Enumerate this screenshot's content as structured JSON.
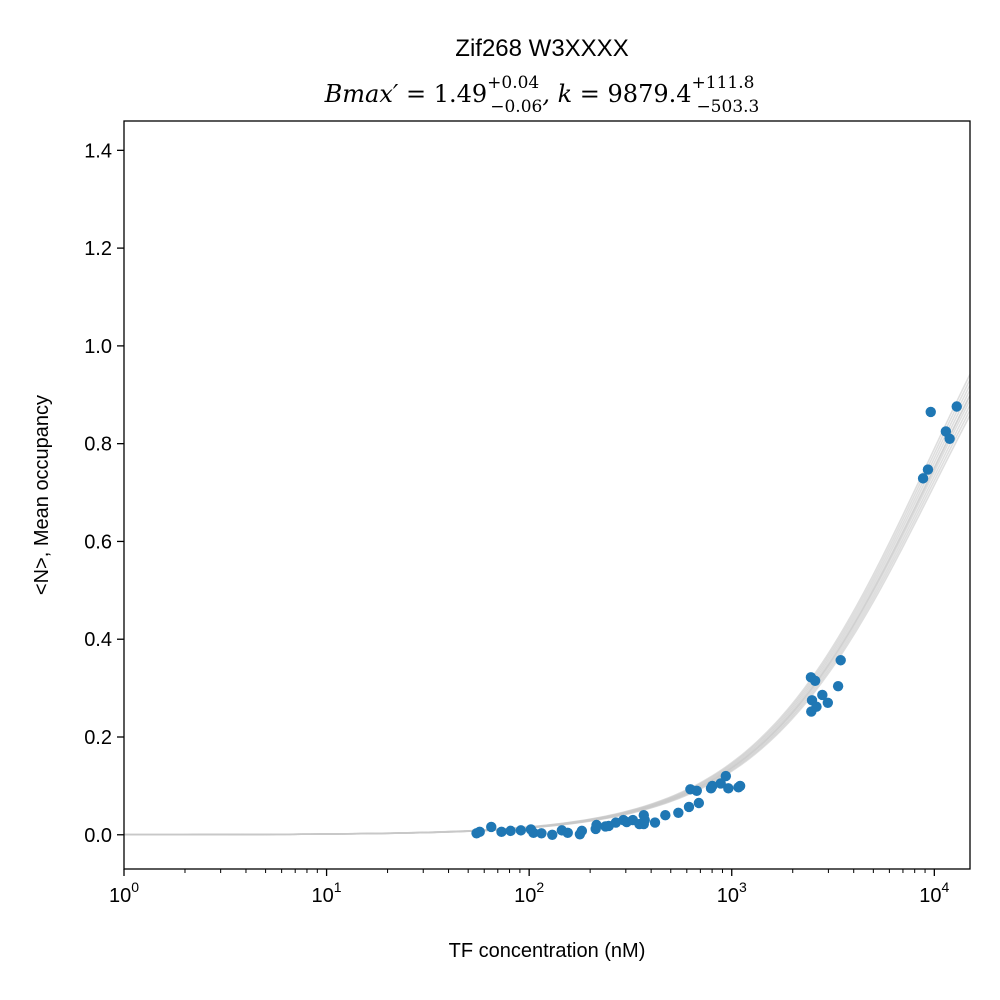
{
  "chart_data": {
    "type": "scatter",
    "title": "Zif268 W3XXXX",
    "subtitle": {
      "bmax_symbol": "Bmax′ = ",
      "bmax_value": "1.49",
      "bmax_plus": "+0.04",
      "bmax_minus": "−0.06",
      "k_symbol": ", k = ",
      "k_value": "9879.4",
      "k_plus": "+111.8",
      "k_minus": "−503.3"
    },
    "xlabel": "TF concentration (nM)",
    "ylabel": "<N>, Mean occupancy",
    "xscale": "log",
    "xlim": [
      1,
      15000
    ],
    "ylim": [
      -0.07,
      1.46
    ],
    "yticks": [
      0.0,
      0.2,
      0.4,
      0.6,
      0.8,
      1.0,
      1.2,
      1.4
    ],
    "ytick_labels": [
      "0.0",
      "0.2",
      "0.4",
      "0.6",
      "0.8",
      "1.0",
      "1.2",
      "1.4"
    ],
    "xticks": [
      1,
      10,
      100,
      1000,
      10000
    ],
    "xtick_labels": [
      {
        "base": "10",
        "exp": "0"
      },
      {
        "base": "10",
        "exp": "1"
      },
      {
        "base": "10",
        "exp": "2"
      },
      {
        "base": "10",
        "exp": "3"
      },
      {
        "base": "10",
        "exp": "4"
      }
    ],
    "grid": false,
    "colors": {
      "points": "#1f77b4",
      "fit": "#c8c8c8"
    },
    "fit": {
      "bmax": 1.49,
      "k": 9879.4,
      "bmax_low": 1.43,
      "bmax_high": 1.53,
      "k_low": 9376.1,
      "k_high": 9991.2
    },
    "points": [
      {
        "x": 55,
        "y": 0.003
      },
      {
        "x": 57,
        "y": 0.006
      },
      {
        "x": 65,
        "y": 0.016
      },
      {
        "x": 73,
        "y": 0.006
      },
      {
        "x": 81,
        "y": 0.008
      },
      {
        "x": 91,
        "y": 0.009
      },
      {
        "x": 102,
        "y": 0.011
      },
      {
        "x": 105,
        "y": 0.004
      },
      {
        "x": 115,
        "y": 0.003
      },
      {
        "x": 130,
        "y": 0.0
      },
      {
        "x": 145,
        "y": 0.009
      },
      {
        "x": 155,
        "y": 0.004
      },
      {
        "x": 178,
        "y": 0.001
      },
      {
        "x": 182,
        "y": 0.008
      },
      {
        "x": 213,
        "y": 0.012
      },
      {
        "x": 215,
        "y": 0.02
      },
      {
        "x": 238,
        "y": 0.017
      },
      {
        "x": 247,
        "y": 0.018
      },
      {
        "x": 268,
        "y": 0.025
      },
      {
        "x": 292,
        "y": 0.03
      },
      {
        "x": 303,
        "y": 0.026
      },
      {
        "x": 325,
        "y": 0.03
      },
      {
        "x": 350,
        "y": 0.022
      },
      {
        "x": 368,
        "y": 0.022
      },
      {
        "x": 368,
        "y": 0.04
      },
      {
        "x": 372,
        "y": 0.03
      },
      {
        "x": 418,
        "y": 0.025
      },
      {
        "x": 470,
        "y": 0.04
      },
      {
        "x": 545,
        "y": 0.045
      },
      {
        "x": 615,
        "y": 0.057
      },
      {
        "x": 625,
        "y": 0.093
      },
      {
        "x": 672,
        "y": 0.09
      },
      {
        "x": 688,
        "y": 0.065
      },
      {
        "x": 790,
        "y": 0.095
      },
      {
        "x": 802,
        "y": 0.1
      },
      {
        "x": 882,
        "y": 0.105
      },
      {
        "x": 935,
        "y": 0.12
      },
      {
        "x": 962,
        "y": 0.095
      },
      {
        "x": 1080,
        "y": 0.097
      },
      {
        "x": 1100,
        "y": 0.1
      },
      {
        "x": 2460,
        "y": 0.322
      },
      {
        "x": 2470,
        "y": 0.252
      },
      {
        "x": 2490,
        "y": 0.275
      },
      {
        "x": 2580,
        "y": 0.315
      },
      {
        "x": 2620,
        "y": 0.262
      },
      {
        "x": 2800,
        "y": 0.286
      },
      {
        "x": 2980,
        "y": 0.27
      },
      {
        "x": 3350,
        "y": 0.304
      },
      {
        "x": 3450,
        "y": 0.357
      },
      {
        "x": 8800,
        "y": 0.729
      },
      {
        "x": 9300,
        "y": 0.747
      },
      {
        "x": 9600,
        "y": 0.865
      },
      {
        "x": 11400,
        "y": 0.825
      },
      {
        "x": 11900,
        "y": 0.81
      },
      {
        "x": 12900,
        "y": 0.876
      }
    ]
  }
}
